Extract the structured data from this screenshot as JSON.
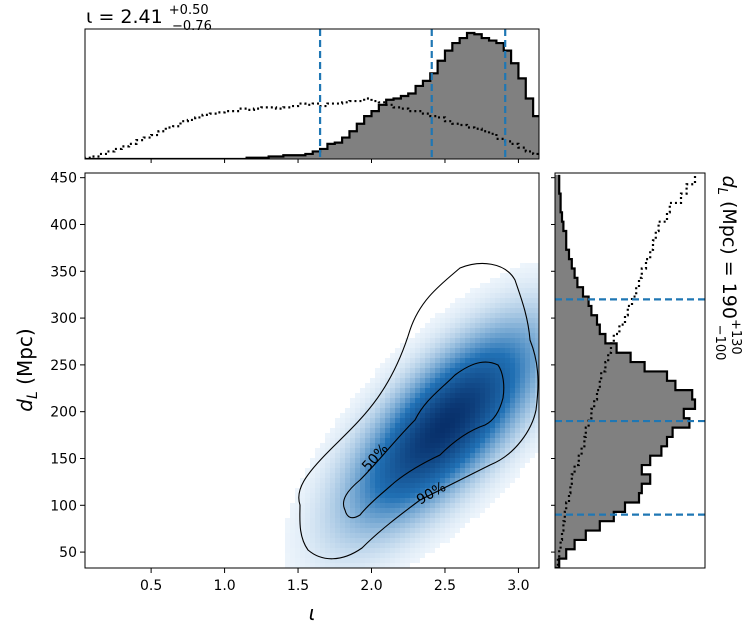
{
  "chart_data": {
    "type": "heatmap",
    "top_title": {
      "prefix": "ι = 2.41",
      "sup": "+0.50",
      "sub": "−0.76"
    },
    "right_title": {
      "prefix": "d",
      "prefix_sub": "L",
      "middle": " (Mpc) = 190",
      "sup": "+130",
      "sub": "−100"
    },
    "xlabel": "ι",
    "ylabel_main": "d",
    "ylabel_sub": "L",
    "ylabel_unit": " (Mpc)",
    "xlim": [
      0.05,
      3.14
    ],
    "ylim": [
      33,
      455
    ],
    "x_ticks": [
      "0.5",
      "1.0",
      "1.5",
      "2.0",
      "2.5",
      "3.0"
    ],
    "x_tick_values": [
      0.5,
      1.0,
      1.5,
      2.0,
      2.5,
      3.0
    ],
    "y_ticks": [
      "50",
      "100",
      "150",
      "200",
      "250",
      "300",
      "350",
      "400",
      "450"
    ],
    "y_tick_values": [
      50,
      100,
      150,
      200,
      250,
      300,
      350,
      400,
      450
    ],
    "iota_quantiles": [
      1.65,
      2.41,
      2.91
    ],
    "dl_quantiles": [
      90,
      190,
      320
    ],
    "contour_labels": [
      "50%",
      "90%"
    ],
    "density_peak": {
      "iota": 2.5,
      "dl": 185
    },
    "iota_posterior_hist": {
      "bin_start": 0.05,
      "bin_width": 0.05,
      "values": [
        0,
        0,
        0,
        0,
        0,
        0,
        0,
        0,
        0,
        0,
        0,
        0,
        0,
        0,
        0,
        0,
        0,
        0,
        0,
        0,
        0,
        0,
        0.01,
        0.01,
        0.01,
        0.02,
        0.02,
        0.03,
        0.03,
        0.03,
        0.04,
        0.06,
        0.08,
        0.12,
        0.13,
        0.17,
        0.22,
        0.28,
        0.34,
        0.38,
        0.43,
        0.47,
        0.48,
        0.5,
        0.52,
        0.58,
        0.62,
        0.68,
        0.78,
        0.86,
        0.92,
        0.96,
        1.0,
        0.99,
        0.96,
        0.94,
        0.92,
        0.86,
        0.76,
        0.64,
        0.48,
        0.34,
        0.22
      ]
    },
    "iota_prior_hist": {
      "bin_start": 0.05,
      "bin_width": 0.05,
      "values": [
        0.01,
        0.02,
        0.04,
        0.06,
        0.08,
        0.1,
        0.12,
        0.15,
        0.17,
        0.19,
        0.22,
        0.25,
        0.26,
        0.3,
        0.31,
        0.33,
        0.35,
        0.36,
        0.37,
        0.38,
        0.38,
        0.4,
        0.39,
        0.4,
        0.41,
        0.41,
        0.4,
        0.41,
        0.42,
        0.44,
        0.43,
        0.44,
        0.42,
        0.44,
        0.44,
        0.45,
        0.46,
        0.46,
        0.48,
        0.46,
        0.45,
        0.43,
        0.41,
        0.4,
        0.38,
        0.38,
        0.36,
        0.34,
        0.33,
        0.3,
        0.28,
        0.27,
        0.25,
        0.24,
        0.22,
        0.2,
        0.16,
        0.14,
        0.12,
        0.09,
        0.06,
        0.04,
        0.02
      ]
    },
    "dl_posterior_hist": {
      "bin_start": 33,
      "bin_width": 10,
      "values": [
        0.03,
        0.08,
        0.14,
        0.22,
        0.32,
        0.42,
        0.5,
        0.6,
        0.62,
        0.68,
        0.62,
        0.68,
        0.76,
        0.8,
        0.84,
        0.96,
        0.92,
        1.0,
        0.98,
        0.86,
        0.8,
        0.64,
        0.54,
        0.44,
        0.36,
        0.32,
        0.3,
        0.26,
        0.24,
        0.2,
        0.16,
        0.14,
        0.12,
        0.1,
        0.08,
        0.08,
        0.06,
        0.05,
        0.04,
        0.04,
        0.03,
        0.03
      ]
    },
    "dl_prior_hist": {
      "bin_start": 33,
      "bin_width": 10,
      "values": [
        0.02,
        0.03,
        0.04,
        0.05,
        0.06,
        0.07,
        0.08,
        0.1,
        0.11,
        0.12,
        0.14,
        0.17,
        0.19,
        0.21,
        0.22,
        0.24,
        0.26,
        0.28,
        0.3,
        0.32,
        0.33,
        0.36,
        0.38,
        0.4,
        0.42,
        0.46,
        0.5,
        0.52,
        0.55,
        0.58,
        0.6,
        0.62,
        0.65,
        0.68,
        0.7,
        0.72,
        0.74,
        0.8,
        0.82,
        0.9,
        0.94,
        1.0
      ]
    },
    "colors": {
      "hist_fill": "#808080",
      "quantile_line": "#1f77b4",
      "cmap_low": "#f7fbff",
      "cmap_high": "#08306b"
    },
    "grid": false,
    "legend": "none"
  }
}
